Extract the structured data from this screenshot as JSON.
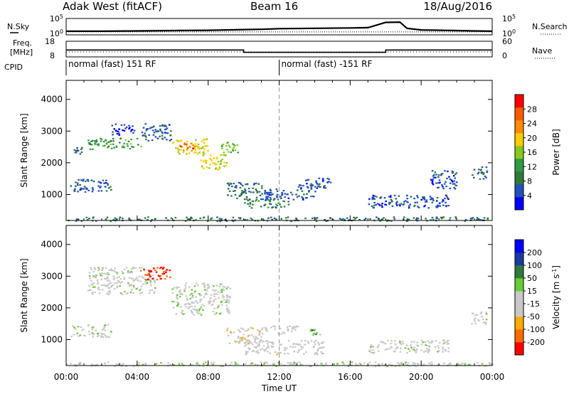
{
  "header": {
    "station": "Adak West (fitACF)",
    "beam": "Beam 16",
    "date": "18/Aug/2016"
  },
  "colors": {
    "power_scale": [
      "#0000ff",
      "#2450b8",
      "#2f7a3a",
      "#2e9a44",
      "#88c820",
      "#ffcc00",
      "#ff8c00",
      "#ff5a00",
      "#ff0000"
    ],
    "velocity_scale": [
      "#ff0000",
      "#ff6a00",
      "#ffaa00",
      "#c8c8c8",
      "#c8c8c8",
      "#66cc33",
      "#2f7a3a",
      "#1a3aa0",
      "#0000ff"
    ]
  },
  "chart_data": [
    {
      "type": "line",
      "panel": "noise-and-search",
      "left_label": "N.Sky",
      "left_ticks": [
        "10^5",
        "10^0"
      ],
      "right_label": "N.Search",
      "right_ticks": [
        "10^5",
        "10^0"
      ],
      "x": [
        0,
        0.5,
        2,
        4,
        6,
        8,
        10,
        11,
        12,
        14,
        16,
        17,
        18,
        18.8,
        19.2,
        20,
        22,
        23,
        24
      ],
      "series": [
        {
          "values": [
            1.1,
            1.1,
            1.1,
            1.2,
            1.3,
            1.4,
            1.6,
            1.7,
            1.9,
            2.0,
            2.1,
            2.2,
            3.8,
            3.9,
            2.0,
            1.5,
            1.3,
            1.2,
            1.1
          ]
        }
      ]
    },
    {
      "type": "line",
      "panel": "frequency-and-nave",
      "left_label": "Freq. [MHz]",
      "left_ticks": [
        "18",
        "8"
      ],
      "right_label": "Nave",
      "right_ticks": [
        "60",
        "0"
      ],
      "x": [
        0,
        10,
        10,
        18,
        18,
        24
      ],
      "series": [
        {
          "values": [
            12.4,
            12.4,
            10.9,
            10.9,
            12.4,
            12.4
          ]
        }
      ]
    },
    {
      "type": "table",
      "panel": "control-program",
      "label": "CPID",
      "segments": [
        {
          "start": 0,
          "end": 12,
          "text": "normal (fast) 151 RF"
        },
        {
          "start": 12,
          "end": 24,
          "text": "normal (fast) -151 RF"
        }
      ]
    },
    {
      "type": "heatmap",
      "panel": "power",
      "ylabel": "Slant Range [km]",
      "yticks": [
        1000,
        2000,
        3000,
        4000
      ],
      "ylim": [
        180,
        4600
      ],
      "xlim": [
        0,
        24
      ],
      "colorbar": {
        "label": "Power [dB]",
        "ticks": [
          "28",
          "24",
          "20",
          "16",
          "12",
          "8",
          "4"
        ],
        "range": [
          0,
          32
        ]
      },
      "regions": [
        {
          "t0": 0.0,
          "t1": 24.0,
          "r0": 180,
          "r1": 310,
          "value": 8
        },
        {
          "t0": 0.2,
          "t1": 2.5,
          "r0": 1100,
          "r1": 1500,
          "value": 6
        },
        {
          "t0": 0.4,
          "t1": 0.9,
          "r0": 2300,
          "r1": 2500,
          "value": 8
        },
        {
          "t0": 1.2,
          "t1": 4.2,
          "r0": 2450,
          "r1": 2800,
          "value": 12
        },
        {
          "t0": 2.5,
          "t1": 3.8,
          "r0": 2900,
          "r1": 3250,
          "value": 5
        },
        {
          "t0": 4.2,
          "t1": 5.9,
          "r0": 2700,
          "r1": 3250,
          "value": 6
        },
        {
          "t0": 5.9,
          "t1": 8.0,
          "r0": 2300,
          "r1": 2800,
          "value": 19
        },
        {
          "t0": 6.2,
          "t1": 7.2,
          "r0": 2400,
          "r1": 2650,
          "value": 26
        },
        {
          "t0": 7.5,
          "t1": 9.0,
          "r0": 1800,
          "r1": 2300,
          "value": 17
        },
        {
          "t0": 8.7,
          "t1": 9.7,
          "r0": 2350,
          "r1": 2700,
          "value": 14
        },
        {
          "t0": 9.0,
          "t1": 11.0,
          "r0": 900,
          "r1": 1400,
          "value": 7
        },
        {
          "t0": 10.0,
          "t1": 12.5,
          "r0": 600,
          "r1": 900,
          "value": 9
        },
        {
          "t0": 11.0,
          "t1": 14.0,
          "r0": 850,
          "r1": 1200,
          "value": 6
        },
        {
          "t0": 13.0,
          "t1": 15.0,
          "r0": 1200,
          "r1": 1550,
          "value": 5
        },
        {
          "t0": 17.0,
          "t1": 21.5,
          "r0": 600,
          "r1": 1000,
          "value": 5
        },
        {
          "t0": 20.5,
          "t1": 22.0,
          "r0": 1200,
          "r1": 1800,
          "value": 5
        },
        {
          "t0": 22.8,
          "t1": 23.7,
          "r0": 1500,
          "r1": 1900,
          "value": 7
        }
      ]
    },
    {
      "type": "heatmap",
      "panel": "velocity",
      "xlabel": "Time UT",
      "ylabel": "Slant Range [km]",
      "xticks": [
        "00:00",
        "04:00",
        "08:00",
        "12:00",
        "16:00",
        "20:00",
        "00:00"
      ],
      "yticks": [
        1000,
        2000,
        3000,
        4000
      ],
      "ylim": [
        180,
        4600
      ],
      "xlim": [
        0,
        24
      ],
      "colorbar": {
        "label": "Velocity [m s^-1]",
        "ticks": [
          "200",
          "100",
          "50",
          "15",
          "-15",
          "-50",
          "-100",
          "-200"
        ],
        "range": [
          -250,
          250
        ]
      },
      "regions": [
        {
          "t0": 0.0,
          "t1": 24.0,
          "r0": 180,
          "r1": 310,
          "value": 0
        },
        {
          "t0": 0.2,
          "t1": 2.5,
          "r0": 1100,
          "r1": 1500,
          "value": 0
        },
        {
          "t0": 1.2,
          "t1": 5.0,
          "r0": 2450,
          "r1": 3300,
          "value": 0
        },
        {
          "t0": 4.3,
          "t1": 5.9,
          "r0": 2900,
          "r1": 3300,
          "value": -210
        },
        {
          "t0": 5.9,
          "t1": 9.2,
          "r0": 1800,
          "r1": 2800,
          "value": 0
        },
        {
          "t0": 9.0,
          "t1": 11.0,
          "r0": 900,
          "r1": 1400,
          "value": -60
        },
        {
          "t0": 10.0,
          "t1": 14.5,
          "r0": 550,
          "r1": 1000,
          "value": -40
        },
        {
          "t0": 11.0,
          "t1": 13.0,
          "r0": 1200,
          "r1": 1450,
          "value": -45
        },
        {
          "t0": 13.5,
          "t1": 14.3,
          "r0": 1150,
          "r1": 1350,
          "value": 60
        },
        {
          "t0": 17.0,
          "t1": 21.5,
          "r0": 600,
          "r1": 1000,
          "value": 0
        },
        {
          "t0": 22.8,
          "t1": 23.7,
          "r0": 1500,
          "r1": 1900,
          "value": 0
        }
      ]
    }
  ]
}
